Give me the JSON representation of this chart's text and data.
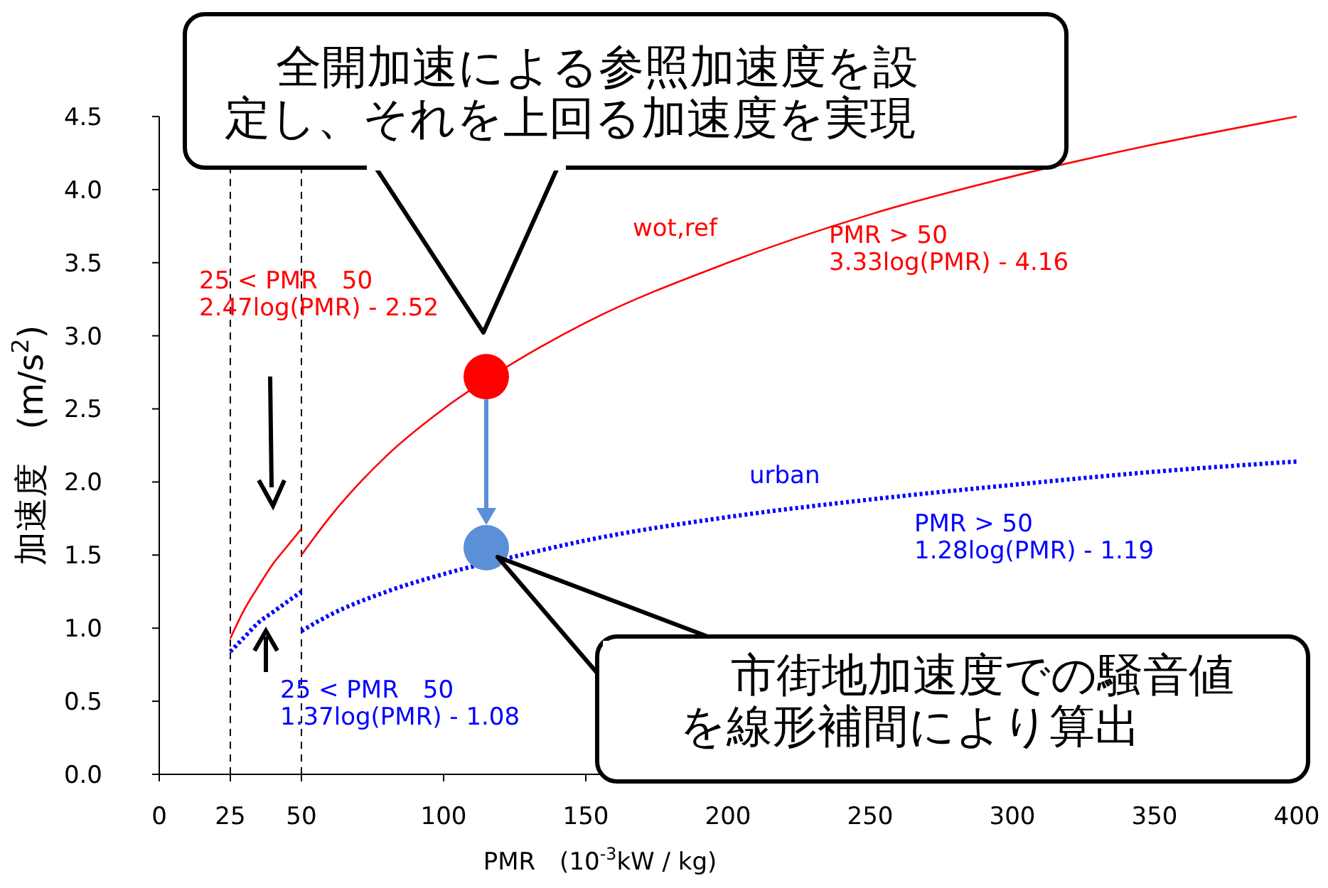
{
  "chart_data": {
    "type": "line",
    "xlabel": "PMR　(10$^{-3}$kW / kg)",
    "ylabel": "加速度　(m/s$^{2}$)",
    "annotations": [
      "全開加速による参照加速度を設",
      "定し、それを上回る加速度を実現",
      "市街地加速度での騒音値",
      "を線形補間により算出",
      "PMR > 50\n3.33log(PMR) - 4.16",
      "25 < PMR　50\n2.47log(PMR) - 2.52",
      "PMR > 50\n1.28log(PMR) - 1.19",
      "25 < PMR　50\n1.37log(PMR) - 1.08"
    ],
    "xlim": [
      0,
      400
    ],
    "ylim": [
      0,
      4.5
    ],
    "xticks": [
      0,
      25,
      50,
      100,
      150,
      200,
      250,
      300,
      350,
      400
    ],
    "yticks": [
      {
        "value": 0,
        "label": "0.0"
      },
      {
        "value": 0.5,
        "label": "0.5"
      },
      {
        "value": 1,
        "label": "1.0"
      },
      {
        "value": 1.5,
        "label": "1.5"
      },
      {
        "value": 2,
        "label": "2.0"
      },
      {
        "value": 2.5,
        "label": "2.5"
      },
      {
        "value": 3,
        "label": "3.0"
      },
      {
        "value": 3.5,
        "label": "3.5"
      },
      {
        "value": 4,
        "label": "4.0"
      },
      {
        "value": 4.5,
        "label": "4.5"
      }
    ],
    "ref_lines": [
      {
        "axis": "x",
        "value": 25,
        "color": "#000000",
        "line_style": "dashed"
      },
      {
        "axis": "x",
        "value": 50,
        "color": "#000000",
        "line_style": "dashed"
      }
    ],
    "series": [
      {
        "color": "#ff0000",
        "line_style": "solid",
        "x": [
          25,
          30,
          35,
          40,
          45,
          50
        ],
        "values": [
          0.93,
          1.13,
          1.29,
          1.44,
          1.56,
          1.68
        ]
      },
      {
        "name": "wot,ref",
        "color": "#ff0000",
        "line_style": "solid",
        "x": [
          50,
          60,
          80,
          100,
          125,
          150,
          200,
          250,
          300,
          350,
          400
        ],
        "values": [
          1.5,
          1.76,
          2.18,
          2.5,
          2.82,
          3.09,
          3.5,
          3.83,
          4.09,
          4.31,
          4.5
        ]
      },
      {
        "color": "#0000ff",
        "line_style": "dotted",
        "x": [
          25,
          30,
          35,
          40,
          45,
          50
        ],
        "values": [
          0.84,
          0.94,
          1.04,
          1.11,
          1.18,
          1.25
        ]
      },
      {
        "name": "urban",
        "color": "#0000ff",
        "line_style": "dotted",
        "x": [
          50,
          60,
          80,
          100,
          125,
          150,
          200,
          250,
          300,
          350,
          400
        ],
        "values": [
          0.98,
          1.09,
          1.25,
          1.37,
          1.49,
          1.6,
          1.76,
          1.88,
          1.98,
          2.07,
          2.14
        ]
      },
      {
        "type": "scatter",
        "marker": "circle",
        "color": "#ff0000",
        "x": [
          115
        ],
        "values": [
          2.72
        ]
      },
      {
        "type": "scatter",
        "marker": "circle",
        "color": "#5b8fd6",
        "x": [
          115
        ],
        "values": [
          1.55
        ]
      }
    ]
  }
}
